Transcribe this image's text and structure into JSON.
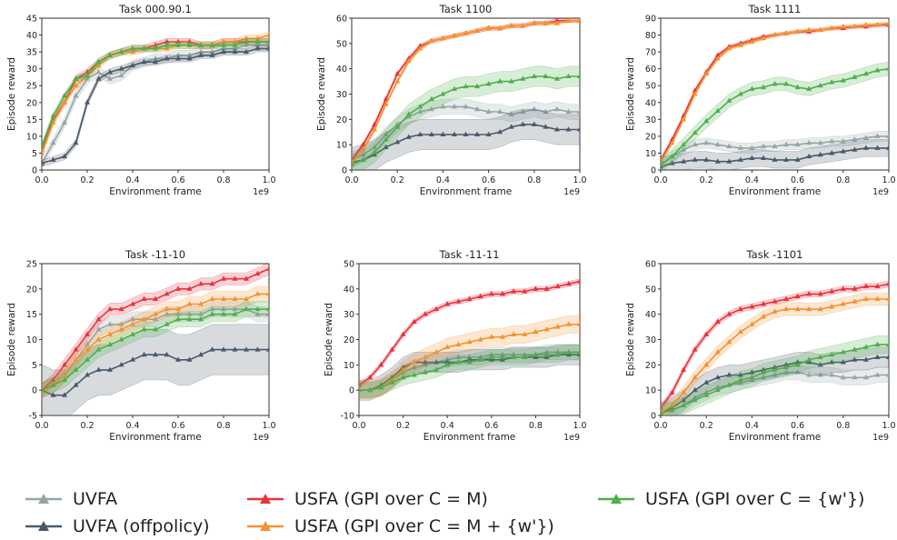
{
  "colors": {
    "UVFA": "#95a5a6",
    "UVFA (offpolicy)": "#4a5a6a",
    "USFA (GPI over C = M)": "#e8343e",
    "USFA (GPI over C = M + {w'})": "#f5922e",
    "USFA (GPI over C = {w'})": "#4daf4a"
  },
  "legend": {
    "uvfa": "UVFA",
    "uvfa_off": "UVFA (offpolicy)",
    "usfa_m": "USFA (GPI over C = M)",
    "usfa_mw": "USFA (GPI over C = M + {w'})",
    "usfa_w": "USFA (GPI over C = {w'})"
  },
  "chart_data": [
    {
      "type": "line",
      "title": "Task 000.90.1",
      "xlabel": "Environment frame",
      "ylabel": "Episode reward",
      "x_multiplier_label": "1e9",
      "xlim": [
        0,
        1.0
      ],
      "ylim": [
        0,
        45
      ],
      "xticks": [
        "0.0",
        "0.2",
        "0.4",
        "0.6",
        "0.8",
        "1.0"
      ],
      "yticks": [
        "0",
        "5",
        "10",
        "15",
        "20",
        "25",
        "30",
        "35",
        "40",
        "45"
      ],
      "x": [
        0.0,
        0.05,
        0.1,
        0.15,
        0.2,
        0.25,
        0.3,
        0.35,
        0.4,
        0.45,
        0.5,
        0.55,
        0.6,
        0.65,
        0.7,
        0.75,
        0.8,
        0.85,
        0.9,
        0.95,
        1.0
      ],
      "series": [
        {
          "name": "UVFA",
          "values": [
            2,
            8,
            14,
            22,
            27,
            29,
            27,
            28,
            31,
            32,
            33,
            33,
            34,
            34,
            35,
            35,
            36,
            36,
            37,
            37,
            37
          ],
          "band": 1.5
        },
        {
          "name": "UVFA (offpolicy)",
          "values": [
            2,
            3,
            4,
            8,
            20,
            27,
            29,
            30,
            31,
            32,
            32,
            33,
            33,
            33,
            34,
            34,
            35,
            35,
            35,
            36,
            36
          ],
          "band": 1.0
        },
        {
          "name": "USFA (GPI over C = M)",
          "values": [
            6,
            15,
            20,
            27,
            29,
            32,
            34,
            35,
            36,
            36,
            37,
            38,
            38,
            38,
            37,
            37,
            38,
            38,
            38,
            38,
            38
          ],
          "band": 1.0
        },
        {
          "name": "USFA (GPI over C = M + {w'})",
          "values": [
            5,
            14,
            20,
            25,
            28,
            31,
            34,
            35,
            35,
            36,
            36,
            36,
            37,
            37,
            37,
            37,
            38,
            38,
            39,
            39,
            40
          ],
          "band": 1.0
        },
        {
          "name": "USFA (GPI over C = {w'})",
          "values": [
            7,
            16,
            22,
            27,
            28,
            32,
            34,
            35,
            36,
            36,
            36,
            37,
            37,
            37,
            37,
            37,
            37,
            37,
            38,
            38,
            38
          ],
          "band": 1.0
        }
      ]
    },
    {
      "type": "line",
      "title": "Task 1100",
      "xlabel": "Environment frame",
      "ylabel": "Episode reward",
      "x_multiplier_label": "1e9",
      "xlim": [
        0,
        1.0
      ],
      "ylim": [
        0,
        60
      ],
      "xticks": [
        "0.0",
        "0.2",
        "0.4",
        "0.6",
        "0.8",
        "1.0"
      ],
      "yticks": [
        "0",
        "10",
        "20",
        "30",
        "40",
        "50",
        "60"
      ],
      "x": [
        0.0,
        0.05,
        0.1,
        0.15,
        0.2,
        0.25,
        0.3,
        0.35,
        0.4,
        0.45,
        0.5,
        0.55,
        0.6,
        0.65,
        0.7,
        0.75,
        0.8,
        0.85,
        0.9,
        0.95,
        1.0
      ],
      "series": [
        {
          "name": "UVFA",
          "values": [
            4,
            6,
            9,
            14,
            18,
            21,
            23,
            24,
            25,
            25,
            25,
            24,
            23,
            23,
            22,
            23,
            24,
            23,
            24,
            23,
            23
          ],
          "band": 3
        },
        {
          "name": "UVFA (offpolicy)",
          "values": [
            3,
            4,
            6,
            9,
            11,
            13,
            14,
            14,
            14,
            14,
            14,
            14,
            14,
            15,
            17,
            18,
            18,
            17,
            16,
            16,
            16
          ],
          "band": 6
        },
        {
          "name": "USFA (GPI over C = M)",
          "values": [
            4,
            10,
            18,
            28,
            38,
            44,
            49,
            51,
            52,
            53,
            54,
            55,
            56,
            56,
            57,
            57,
            58,
            58,
            59,
            59,
            59
          ],
          "band": 0.8
        },
        {
          "name": "USFA (GPI over C = M + {w'})",
          "values": [
            3,
            8,
            16,
            26,
            35,
            43,
            48,
            51,
            52,
            53,
            54,
            55,
            56,
            56,
            57,
            57,
            58,
            58,
            58,
            59,
            59
          ],
          "band": 0.8
        },
        {
          "name": "USFA (GPI over C = {w'})",
          "values": [
            2,
            4,
            7,
            12,
            17,
            22,
            25,
            28,
            30,
            32,
            33,
            33,
            34,
            35,
            35,
            36,
            37,
            37,
            36,
            37,
            37
          ],
          "band": 4
        }
      ]
    },
    {
      "type": "line",
      "title": "Task 1111",
      "xlabel": "Environment frame",
      "ylabel": "Episode reward",
      "x_multiplier_label": "1e9",
      "xlim": [
        0,
        1.0
      ],
      "ylim": [
        0,
        90
      ],
      "xticks": [
        "0.0",
        "0.2",
        "0.4",
        "0.6",
        "0.8",
        "1.0"
      ],
      "yticks": [
        "0",
        "10",
        "20",
        "30",
        "40",
        "50",
        "60",
        "70",
        "80",
        "90"
      ],
      "x": [
        0.0,
        0.05,
        0.1,
        0.15,
        0.2,
        0.25,
        0.3,
        0.35,
        0.4,
        0.45,
        0.5,
        0.55,
        0.6,
        0.65,
        0.7,
        0.75,
        0.8,
        0.85,
        0.9,
        0.95,
        1.0
      ],
      "series": [
        {
          "name": "UVFA",
          "values": [
            3,
            8,
            12,
            15,
            16,
            15,
            14,
            13,
            13,
            14,
            14,
            15,
            15,
            16,
            16,
            17,
            17,
            18,
            19,
            20,
            20
          ],
          "band": 3
        },
        {
          "name": "UVFA (offpolicy)",
          "values": [
            2,
            4,
            5,
            6,
            6,
            5,
            5,
            6,
            7,
            7,
            6,
            6,
            6,
            8,
            9,
            10,
            11,
            12,
            13,
            13,
            13
          ],
          "band": 5
        },
        {
          "name": "USFA (GPI over C = M)",
          "values": [
            6,
            18,
            32,
            47,
            58,
            68,
            73,
            75,
            77,
            79,
            80,
            81,
            82,
            82,
            83,
            84,
            84,
            85,
            85,
            86,
            86
          ],
          "band": 1
        },
        {
          "name": "USFA (GPI over C = M + {w'})",
          "values": [
            5,
            16,
            30,
            45,
            57,
            66,
            72,
            74,
            76,
            78,
            80,
            81,
            82,
            83,
            83,
            84,
            85,
            85,
            86,
            86,
            87
          ],
          "band": 1
        },
        {
          "name": "USFA (GPI over C = {w'})",
          "values": [
            3,
            8,
            15,
            22,
            29,
            35,
            41,
            45,
            48,
            49,
            51,
            51,
            49,
            48,
            50,
            52,
            53,
            55,
            57,
            59,
            60
          ],
          "band": 4
        }
      ]
    },
    {
      "type": "line",
      "title": "Task -11-10",
      "xlabel": "Environment frame",
      "ylabel": "Episode reward",
      "x_multiplier_label": "1e9",
      "xlim": [
        0,
        1.0
      ],
      "ylim": [
        -5,
        25
      ],
      "xticks": [
        "0.0",
        "0.2",
        "0.4",
        "0.6",
        "0.8",
        "1.0"
      ],
      "yticks": [
        "-5",
        "0",
        "5",
        "10",
        "15",
        "20",
        "25"
      ],
      "x": [
        0.0,
        0.05,
        0.1,
        0.15,
        0.2,
        0.25,
        0.3,
        0.35,
        0.4,
        0.45,
        0.5,
        0.55,
        0.6,
        0.65,
        0.7,
        0.75,
        0.8,
        0.85,
        0.9,
        0.95,
        1.0
      ],
      "series": [
        {
          "name": "UVFA",
          "values": [
            0,
            1,
            3,
            6,
            9,
            12,
            13,
            13,
            14,
            14,
            14,
            15,
            15,
            15,
            15,
            16,
            16,
            16,
            16,
            15,
            15
          ],
          "band": 1.5
        },
        {
          "name": "UVFA (offpolicy)",
          "values": [
            0,
            -1,
            -1,
            1,
            3,
            4,
            4,
            5,
            6,
            7,
            7,
            7,
            6,
            6,
            7,
            8,
            8,
            8,
            8,
            8,
            8
          ],
          "band": 5
        },
        {
          "name": "USFA (GPI over C = M)",
          "values": [
            0,
            2,
            5,
            8,
            11,
            14,
            16,
            16,
            17,
            18,
            18,
            19,
            20,
            20,
            21,
            21,
            22,
            22,
            22,
            23,
            24
          ],
          "band": 1.2
        },
        {
          "name": "USFA (GPI over C = M + {w'})",
          "values": [
            0,
            1,
            3,
            6,
            8,
            10,
            11,
            12,
            13,
            14,
            15,
            16,
            16,
            17,
            17,
            18,
            18,
            18,
            18,
            19,
            19
          ],
          "band": 1.5
        },
        {
          "name": "USFA (GPI over C = {w'})",
          "values": [
            0,
            1,
            2,
            4,
            6,
            8,
            9,
            10,
            11,
            12,
            12,
            13,
            14,
            14,
            14,
            15,
            15,
            15,
            16,
            16,
            16
          ],
          "band": 1.5
        }
      ]
    },
    {
      "type": "line",
      "title": "Task -11-11",
      "xlabel": "Environment frame",
      "ylabel": "Episode reward",
      "x_multiplier_label": "1e9",
      "xlim": [
        0,
        1.0
      ],
      "ylim": [
        -10,
        50
      ],
      "xticks": [
        "0.0",
        "0.2",
        "0.4",
        "0.6",
        "0.8",
        "1.0"
      ],
      "yticks": [
        "-10",
        "0",
        "10",
        "20",
        "30",
        "40",
        "50"
      ],
      "x": [
        0.0,
        0.05,
        0.1,
        0.15,
        0.2,
        0.25,
        0.3,
        0.35,
        0.4,
        0.45,
        0.5,
        0.55,
        0.6,
        0.65,
        0.7,
        0.75,
        0.8,
        0.85,
        0.9,
        0.95,
        1.0
      ],
      "series": [
        {
          "name": "UVFA",
          "values": [
            0,
            0,
            1,
            4,
            7,
            9,
            10,
            11,
            12,
            13,
            13,
            13,
            14,
            14,
            14,
            14,
            14,
            15,
            15,
            15,
            15
          ],
          "band": 3
        },
        {
          "name": "UVFA (offpolicy)",
          "values": [
            0,
            0,
            2,
            5,
            9,
            11,
            11,
            11,
            11,
            11,
            12,
            12,
            12,
            12,
            13,
            13,
            13,
            13,
            14,
            14,
            14
          ],
          "band": 4
        },
        {
          "name": "USFA (GPI over C = M)",
          "values": [
            2,
            5,
            10,
            16,
            22,
            27,
            30,
            32,
            34,
            35,
            36,
            37,
            38,
            38,
            39,
            39,
            40,
            40,
            41,
            42,
            43
          ],
          "band": 1
        },
        {
          "name": "USFA (GPI over C = M + {w'})",
          "values": [
            0,
            0,
            1,
            4,
            8,
            11,
            13,
            15,
            17,
            18,
            19,
            20,
            21,
            21,
            22,
            22,
            23,
            24,
            25,
            26,
            26
          ],
          "band": 3.5
        },
        {
          "name": "USFA (GPI over C = {w'})",
          "values": [
            0,
            0,
            1,
            3,
            5,
            6,
            7,
            8,
            10,
            11,
            11,
            12,
            13,
            13,
            13,
            13,
            14,
            14,
            14,
            15,
            15
          ],
          "band": 3
        }
      ]
    },
    {
      "type": "line",
      "title": "Task -1101",
      "xlabel": "Environment frame",
      "ylabel": "Episode reward",
      "x_multiplier_label": "1e9",
      "xlim": [
        0,
        1.0
      ],
      "ylim": [
        0,
        60
      ],
      "xticks": [
        "0.0",
        "0.2",
        "0.4",
        "0.6",
        "0.8",
        "1.0"
      ],
      "yticks": [
        "0",
        "10",
        "20",
        "30",
        "40",
        "50",
        "60"
      ],
      "x": [
        0.0,
        0.05,
        0.1,
        0.15,
        0.2,
        0.25,
        0.3,
        0.35,
        0.4,
        0.45,
        0.5,
        0.55,
        0.6,
        0.65,
        0.7,
        0.75,
        0.8,
        0.85,
        0.9,
        0.95,
        1.0
      ],
      "series": [
        {
          "name": "UVFA",
          "values": [
            1,
            2,
            4,
            7,
            9,
            11,
            12,
            13,
            14,
            15,
            16,
            17,
            17,
            16,
            16,
            16,
            15,
            15,
            15,
            16,
            16
          ],
          "band": 3
        },
        {
          "name": "UVFA (offpolicy)",
          "values": [
            1,
            3,
            6,
            10,
            13,
            15,
            16,
            16,
            17,
            18,
            19,
            20,
            21,
            21,
            20,
            21,
            21,
            22,
            22,
            23,
            23
          ],
          "band": 4
        },
        {
          "name": "USFA (GPI over C = M)",
          "values": [
            3,
            9,
            18,
            26,
            32,
            37,
            40,
            42,
            43,
            44,
            45,
            46,
            47,
            48,
            48,
            49,
            50,
            50,
            51,
            51,
            52
          ],
          "band": 1.2
        },
        {
          "name": "USFA (GPI over C = M + {w'})",
          "values": [
            1,
            4,
            9,
            15,
            20,
            25,
            29,
            33,
            36,
            39,
            41,
            42,
            42,
            42,
            42,
            43,
            44,
            45,
            46,
            46,
            46
          ],
          "band": 2.5
        },
        {
          "name": "USFA (GPI over C = {w'})",
          "values": [
            1,
            2,
            4,
            6,
            8,
            10,
            12,
            14,
            15,
            17,
            18,
            19,
            20,
            22,
            23,
            24,
            25,
            26,
            27,
            28,
            28
          ],
          "band": 3.5
        }
      ]
    }
  ]
}
